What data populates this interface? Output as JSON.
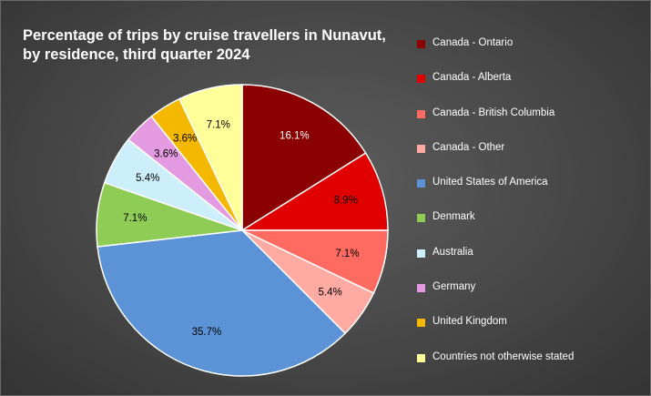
{
  "chart_data": {
    "type": "pie",
    "title_lines": [
      "Percentage of trips by cruise travellers in Nunavut,",
      "by residence, third quarter 2024"
    ],
    "legend_position": "right",
    "slices": [
      {
        "label": "Canada - Ontario",
        "value": 16.1,
        "display": "16.1%",
        "color": "#8b0000",
        "label_color": "#ffffff"
      },
      {
        "label": "Canada - Alberta",
        "value": 8.9,
        "display": "8.9%",
        "color": "#e00000",
        "label_color": "#000000"
      },
      {
        "label": "Canada - British Columbia",
        "value": 7.1,
        "display": "7.1%",
        "color": "#ff6b61",
        "label_color": "#000000"
      },
      {
        "label": "Canada - Other",
        "value": 5.4,
        "display": "5.4%",
        "color": "#ffaaa3",
        "label_color": "#000000"
      },
      {
        "label": "United States of America",
        "value": 35.7,
        "display": "35.7%",
        "color": "#5b93d6",
        "label_color": "#000000"
      },
      {
        "label": "Denmark",
        "value": 7.1,
        "display": "7.1%",
        "color": "#8fcc55",
        "label_color": "#000000"
      },
      {
        "label": "Australia",
        "value": 5.4,
        "display": "5.4%",
        "color": "#cdeefb",
        "label_color": "#000000"
      },
      {
        "label": "Germany",
        "value": 3.6,
        "display": "3.6%",
        "color": "#e49ae0",
        "label_color": "#000000"
      },
      {
        "label": "United Kingdom",
        "value": 3.6,
        "display": "3.6%",
        "color": "#f5b800",
        "label_color": "#000000"
      },
      {
        "label": "Countries not otherwise stated",
        "value": 7.1,
        "display": "7.1%",
        "color": "#ffff99",
        "label_color": "#000000"
      }
    ]
  }
}
